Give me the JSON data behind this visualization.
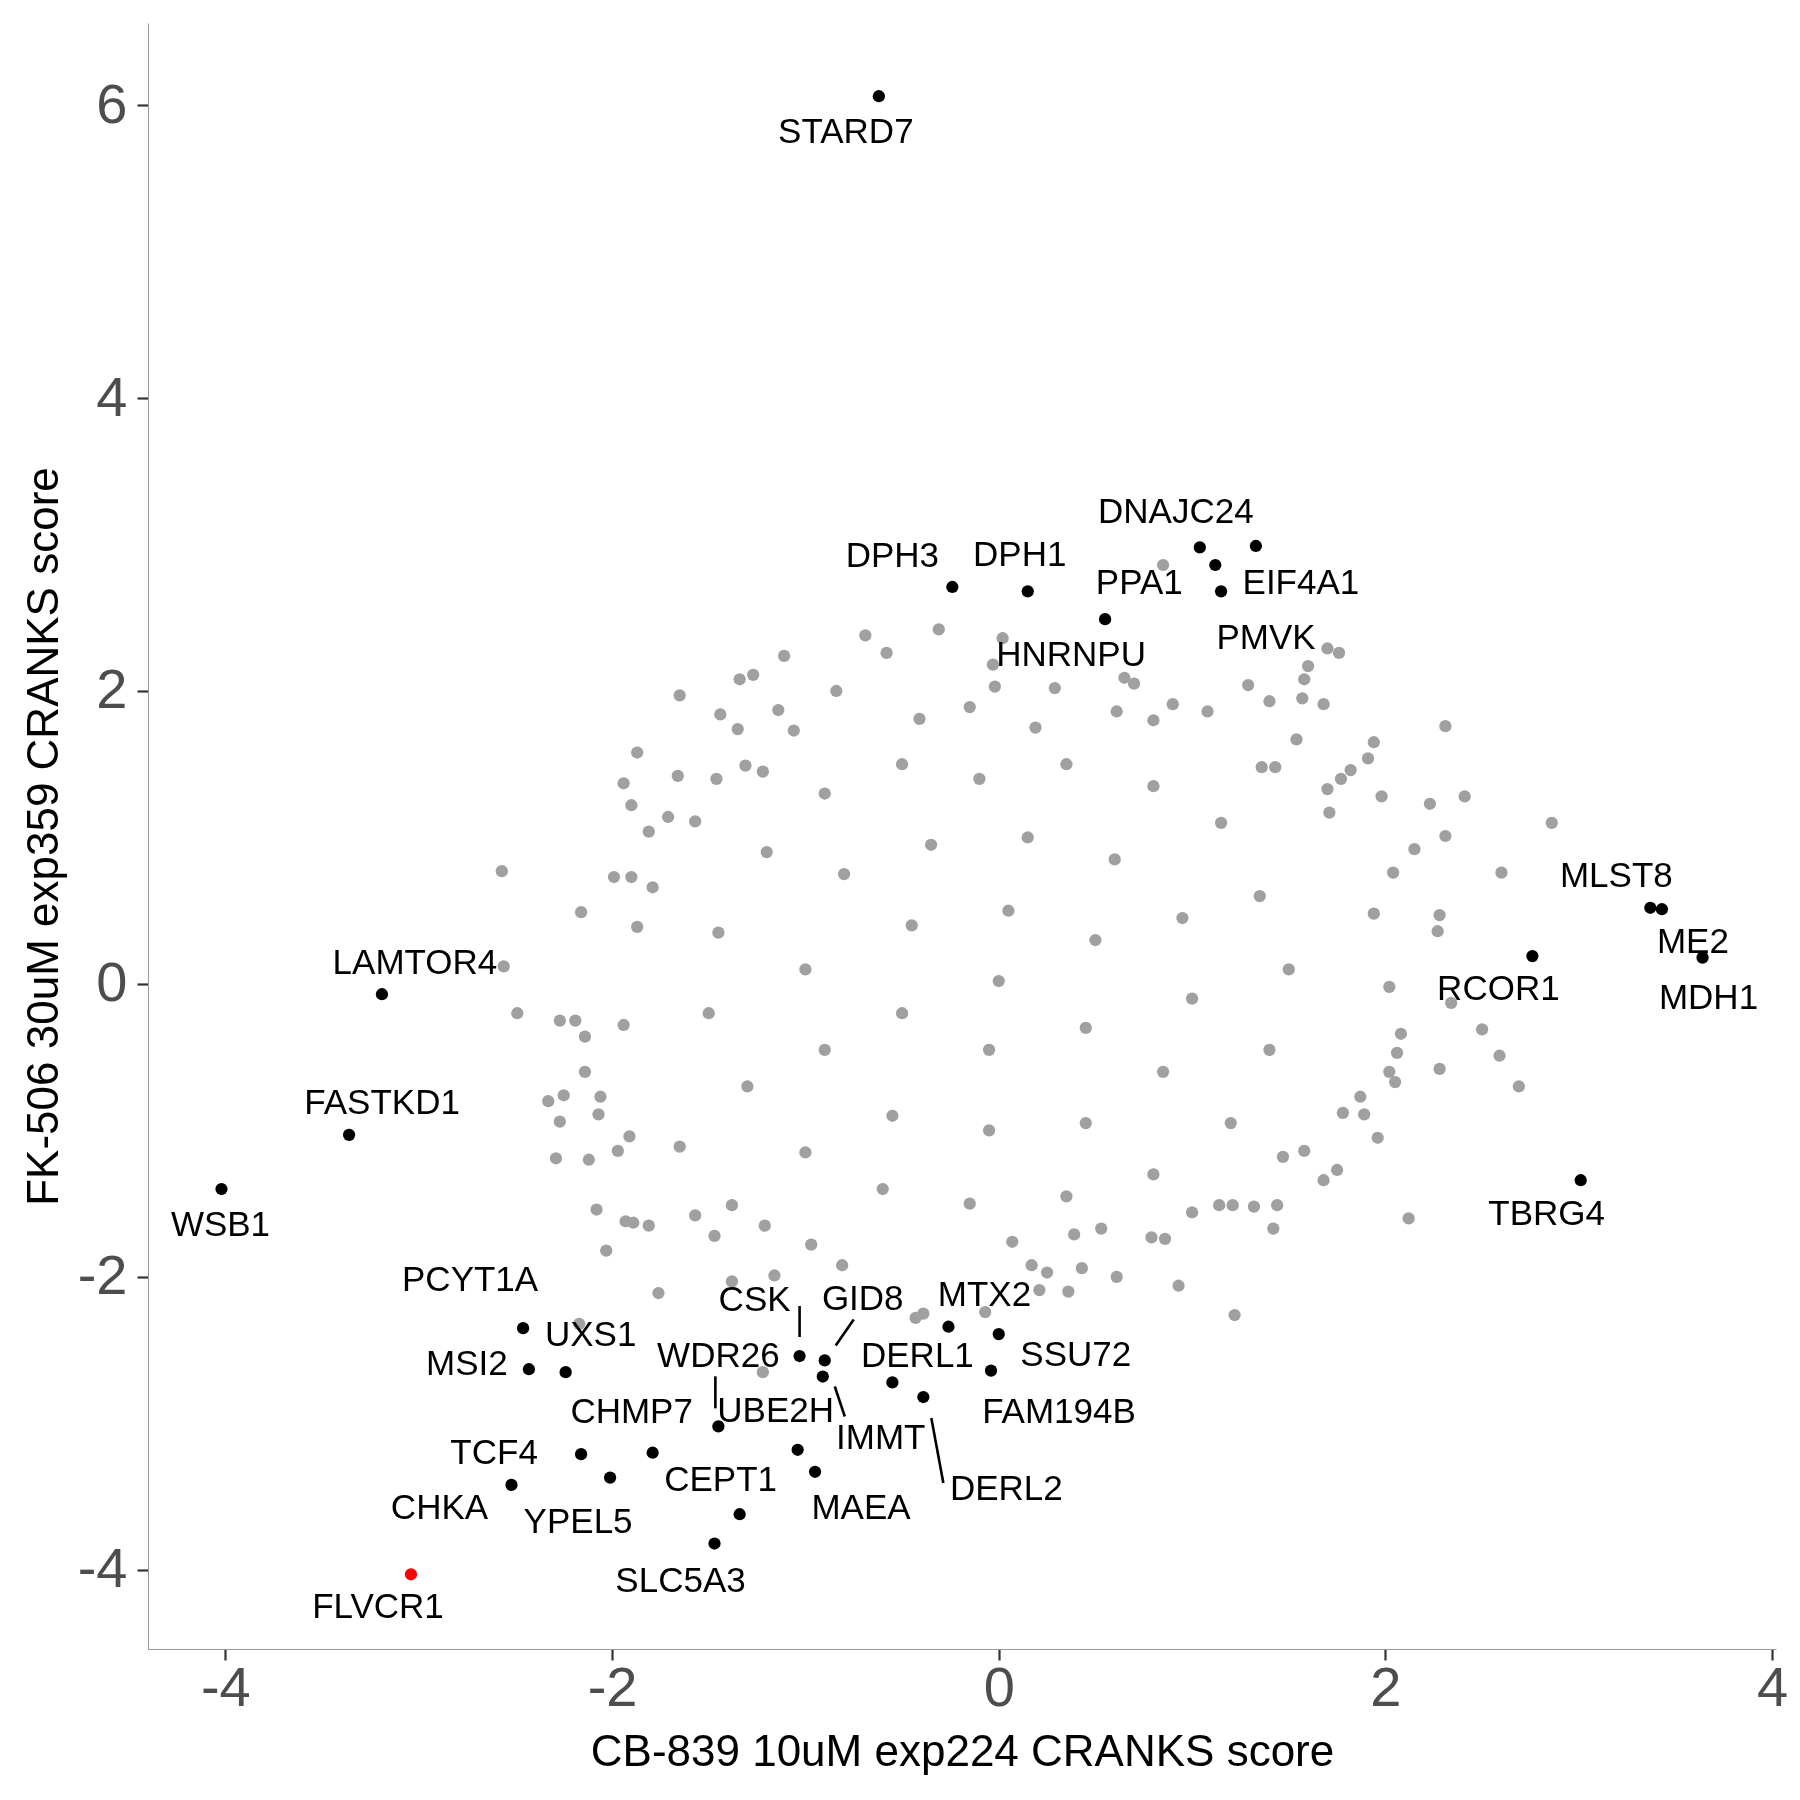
{
  "chart_data": {
    "type": "scatter",
    "xlabel": "CB-839 10uM exp224 CRANKS score",
    "ylabel": "FK-506 30uM exp359 CRANKS score",
    "xlim": [
      -4.4,
      4.02
    ],
    "ylim": [
      -4.54,
      6.56
    ],
    "xticks": [
      -4,
      -2,
      0,
      2,
      4
    ],
    "yticks": [
      -4,
      -2,
      0,
      2,
      4,
      6
    ],
    "marker": "circle",
    "series": [
      {
        "color": "#a0a0a0",
        "x": [
          -0.69,
          -1.11,
          -1.34,
          -1.27,
          -1.65,
          -1.44,
          -1.35,
          -1.14,
          -1.87,
          -1.94,
          -1.9,
          -1.66,
          -1.81,
          -1.71,
          -1.46,
          -2.57,
          -1.99,
          -1.9,
          -1.79,
          -1.57,
          -1.31,
          -1.22,
          -1.06,
          -0.84,
          -0.58,
          0.85,
          -0.31,
          0.02,
          -0.03,
          -0.02,
          0.65,
          0.7,
          0.29,
          1.7,
          1.76,
          1.6,
          1.58,
          1.29,
          1.4,
          1.68,
          1.57,
          2.31,
          1.94,
          1.98,
          2.23,
          2.41,
          2.86,
          2.15,
          2.31,
          2.04,
          2.6,
          1.82,
          1.77,
          1.7,
          1.36,
          1.43,
          1.08,
          0.9,
          0.61,
          0.8,
          0.19,
          -0.15,
          -0.41,
          1.54,
          1.71,
          1.91,
          1.94,
          2.28,
          2.27,
          2.02,
          2.34,
          2.5,
          2.59,
          2.69,
          2.28,
          2.08,
          2.06,
          2.05,
          2.02,
          1.96,
          2.12,
          1.75,
          1.68,
          1.89,
          1.78,
          1.87,
          1.58,
          1.47,
          1.42,
          1.44,
          1.32,
          1.21,
          1.14,
          1.0,
          1.22,
          0.93,
          0.61,
          0.36,
          0.43,
          0.25,
          0.21,
          -0.07,
          -0.39,
          -0.43,
          0.86,
          0.79,
          0.53,
          0.39,
          0.07,
          0.17,
          -2.56,
          -2.49,
          -2.27,
          -2.19,
          -2.14,
          -1.94,
          -2.14,
          -2.33,
          -2.25,
          -2.06,
          -2.27,
          -2.07,
          -2.29,
          -2.12,
          -1.97,
          -1.91,
          -2.08,
          -2.03,
          -1.76,
          -2.17,
          -1.22,
          -1.93,
          -1.89,
          -1.81,
          -1.47,
          -1.57,
          -1.38,
          -1.21,
          -0.97,
          -0.81,
          -1.16,
          -1.38,
          -1.65,
          -2.16,
          -1.87,
          -1.2,
          -0.9,
          -0.5,
          -0.1,
          0.35,
          0.8,
          1.15,
          1.35,
          1.5,
          1.4,
          1.2,
          0.8,
          0.35,
          -0.15,
          -0.6,
          -1.0,
          -1.3,
          -1.5,
          -1.45,
          -0.8,
          -0.35,
          0.15,
          0.6,
          0.95,
          1.0,
          0.85,
          0.45,
          -0.05,
          -0.55,
          -0.9,
          -1.0,
          -0.45,
          0.05,
          0.5,
          0.45,
          -0.05,
          -0.5,
          0.0
        ],
        "values": [
          2.38,
          2.24,
          2.08,
          2.11,
          1.97,
          1.84,
          1.74,
          1.87,
          1.58,
          1.37,
          1.22,
          1.42,
          1.04,
          1.14,
          1.4,
          0.77,
          0.73,
          0.73,
          0.66,
          1.11,
          1.49,
          1.45,
          1.73,
          2.0,
          2.26,
          2.86,
          2.42,
          2.36,
          2.18,
          2.03,
          2.09,
          2.05,
          2.02,
          2.29,
          2.26,
          2.17,
          2.08,
          2.04,
          1.93,
          1.91,
          1.95,
          1.76,
          1.65,
          1.28,
          1.23,
          1.28,
          1.1,
          0.92,
          1.01,
          0.76,
          0.76,
          1.46,
          1.4,
          1.33,
          1.48,
          1.48,
          1.86,
          1.91,
          1.86,
          1.8,
          1.75,
          1.89,
          1.81,
          1.67,
          1.17,
          1.54,
          0.48,
          0.47,
          0.36,
          -0.02,
          -0.13,
          -0.31,
          -0.49,
          -0.7,
          -0.58,
          -0.34,
          -0.47,
          -0.67,
          -0.6,
          -1.05,
          -1.6,
          -1.27,
          -1.34,
          -0.89,
          -0.88,
          -0.77,
          -1.14,
          -1.18,
          -1.67,
          -1.51,
          -1.52,
          -1.51,
          -1.51,
          -1.56,
          -2.26,
          -2.06,
          -2.0,
          -2.1,
          -1.94,
          -1.97,
          -2.09,
          -2.24,
          -2.25,
          -2.28,
          -1.74,
          -1.73,
          -1.67,
          -1.71,
          -1.76,
          -1.92,
          0.12,
          -0.2,
          -0.25,
          -0.25,
          -0.36,
          -0.28,
          -0.6,
          -0.8,
          -0.76,
          -0.77,
          -0.94,
          -0.89,
          -1.19,
          -1.2,
          -1.14,
          -1.04,
          -1.54,
          -1.82,
          -2.11,
          -2.32,
          -2.65,
          -1.62,
          -1.63,
          -1.65,
          -1.72,
          -1.58,
          -1.51,
          -1.65,
          -1.78,
          -1.92,
          -1.99,
          -2.03,
          -1.11,
          0.49,
          0.39,
          0.9,
          1.3,
          1.5,
          1.4,
          1.5,
          1.35,
          1.1,
          0.6,
          0.1,
          -0.45,
          -0.95,
          -1.3,
          -1.45,
          -1.5,
          -1.4,
          -1.15,
          -0.7,
          -0.2,
          0.35,
          0.75,
          0.95,
          1.0,
          0.85,
          0.45,
          -0.1,
          -0.6,
          -0.95,
          -1.0,
          -0.9,
          -0.45,
          0.1,
          0.4,
          0.5,
          0.3,
          -0.3,
          -0.45,
          -0.2,
          0.02
        ]
      },
      {
        "color": "#000000",
        "x": [
          -0.62,
          -0.24,
          0.15,
          0.55,
          1.12,
          1.04,
          1.33,
          1.15,
          3.37,
          3.43,
          3.64,
          2.76,
          3.01,
          -3.19,
          -3.36,
          -4.02,
          -2.46,
          -2.43,
          -2.24,
          -1.03,
          -0.9,
          -1.45,
          -1.04,
          -0.91,
          -0.55,
          -0.39,
          -0.26,
          0.0,
          -0.04,
          -1.79,
          -2.16,
          -2.52,
          -2.01,
          -1.34,
          -0.95,
          -1.47
        ],
        "values": [
          6.06,
          2.71,
          2.68,
          2.49,
          2.86,
          2.98,
          2.99,
          2.68,
          0.52,
          0.51,
          0.18,
          0.19,
          -1.34,
          -0.07,
          -1.03,
          -1.4,
          -2.35,
          -2.63,
          -2.65,
          -2.54,
          -2.57,
          -3.02,
          -3.18,
          -2.68,
          -2.72,
          -2.82,
          -2.34,
          -2.39,
          -2.64,
          -3.2,
          -3.21,
          -3.42,
          -3.37,
          -3.62,
          -3.33,
          -3.82
        ]
      },
      {
        "color": "#ff0000",
        "x": [
          -3.04
        ],
        "values": [
          -4.03
        ]
      }
    ],
    "annotations": [
      {
        "text": "STARD7",
        "x": -0.62,
        "y": 6.06
      },
      {
        "text": "DPH3",
        "x": -0.24,
        "y": 2.71
      },
      {
        "text": "DPH1",
        "x": 0.15,
        "y": 2.68
      },
      {
        "text": "HNRNPU",
        "x": 0.55,
        "y": 2.49
      },
      {
        "text": "PPA1",
        "x": 1.12,
        "y": 2.86
      },
      {
        "text": "DNAJC24",
        "x": 1.04,
        "y": 2.98
      },
      {
        "text": "EIF4A1",
        "x": 1.33,
        "y": 2.99
      },
      {
        "text": "PMVK",
        "x": 1.15,
        "y": 2.68
      },
      {
        "text": "MLST8",
        "x": 3.37,
        "y": 0.52
      },
      {
        "text": "ME2",
        "x": 3.43,
        "y": 0.51
      },
      {
        "text": "MDH1",
        "x": 3.64,
        "y": 0.18
      },
      {
        "text": "RCOR1",
        "x": 2.76,
        "y": 0.19
      },
      {
        "text": "TBRG4",
        "x": 3.01,
        "y": -1.34
      },
      {
        "text": "LAMTOR4",
        "x": -3.19,
        "y": -0.07
      },
      {
        "text": "FASTKD1",
        "x": -3.36,
        "y": -1.03
      },
      {
        "text": "WSB1",
        "x": -4.02,
        "y": -1.4
      },
      {
        "text": "PCYT1A",
        "x": -2.46,
        "y": -2.35
      },
      {
        "text": "MSI2",
        "x": -2.43,
        "y": -2.63
      },
      {
        "text": "UXS1",
        "x": -2.24,
        "y": -2.65
      },
      {
        "text": "CSK",
        "x": -1.03,
        "y": -2.54
      },
      {
        "text": "GID8",
        "x": -0.9,
        "y": -2.57
      },
      {
        "text": "WDR26",
        "x": -1.45,
        "y": -3.02
      },
      {
        "text": "UBE2H",
        "x": -1.04,
        "y": -3.18
      },
      {
        "text": "IMMT",
        "x": -0.91,
        "y": -2.68
      },
      {
        "text": "DERL1",
        "x": -0.55,
        "y": -2.72
      },
      {
        "text": "DERL2",
        "x": -0.39,
        "y": -2.82
      },
      {
        "text": "MTX2",
        "x": -0.26,
        "y": -2.34
      },
      {
        "text": "SSU72",
        "x": 0.0,
        "y": -2.39
      },
      {
        "text": "FAM194B",
        "x": -0.04,
        "y": -2.64
      },
      {
        "text": "CHMP7",
        "x": -1.79,
        "y": -3.2
      },
      {
        "text": "TCF4",
        "x": -2.16,
        "y": -3.21
      },
      {
        "text": "CHKA",
        "x": -2.52,
        "y": -3.42
      },
      {
        "text": "YPEL5",
        "x": -2.01,
        "y": -3.37
      },
      {
        "text": "CEPT1",
        "x": -1.34,
        "y": -3.62
      },
      {
        "text": "MAEA",
        "x": -0.95,
        "y": -3.33
      },
      {
        "text": "SLC5A3",
        "x": -1.47,
        "y": -3.82
      },
      {
        "text": "FLVCR1",
        "x": -3.04,
        "y": -4.03
      }
    ]
  }
}
